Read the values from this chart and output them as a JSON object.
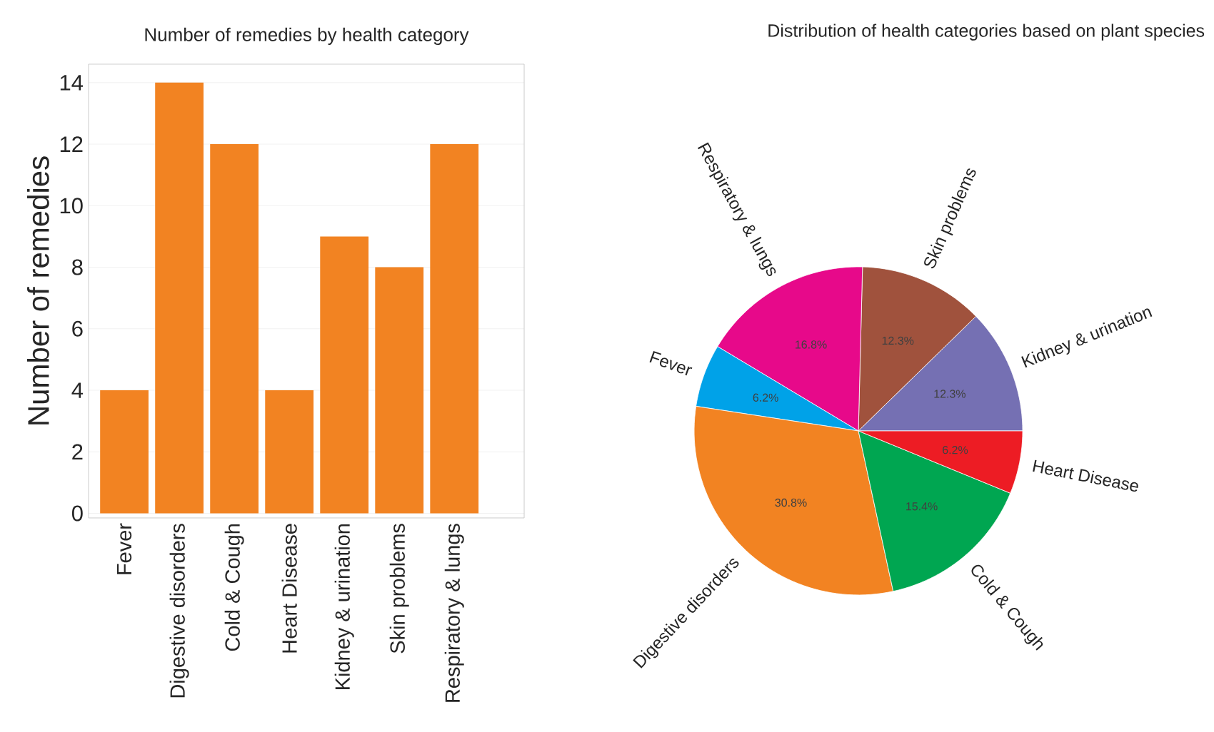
{
  "chart_data": [
    {
      "type": "bar",
      "title": "Number of remedies by health category",
      "ylabel": "Number of remedies",
      "categories": [
        "Fever",
        "Digestive disorders",
        "Cold & Cough",
        "Heart Disease",
        "Kidney & urination",
        "Skin problems",
        "Respiratory & lungs"
      ],
      "values": [
        4,
        14,
        12,
        4,
        9,
        8,
        12
      ],
      "color": "#f28322",
      "ylim": [
        -0.15,
        14.6
      ],
      "yticks": [
        0,
        2,
        4,
        6,
        8,
        10,
        12,
        14
      ],
      "grid": "y"
    },
    {
      "type": "pie",
      "title": "Distribution of health categories based on plant species",
      "categories": [
        "Kidney & urination",
        "Skin problems",
        "Respiratory & lungs",
        "Fever",
        "Digestive disorders",
        "Cold & Cough",
        "Heart Disease"
      ],
      "values": [
        12.3,
        12.3,
        16.8,
        6.2,
        30.8,
        15.4,
        6.2
      ],
      "colors": [
        "#7570b3",
        "#a0523d",
        "#e7098a",
        "#00a2e8",
        "#f28322",
        "#00a651",
        "#ed1c24"
      ],
      "value_labels": [
        "12.3%",
        "12.3%",
        "16.8%",
        "6.2%",
        "30.8%",
        "15.4%",
        "6.2%"
      ]
    }
  ]
}
